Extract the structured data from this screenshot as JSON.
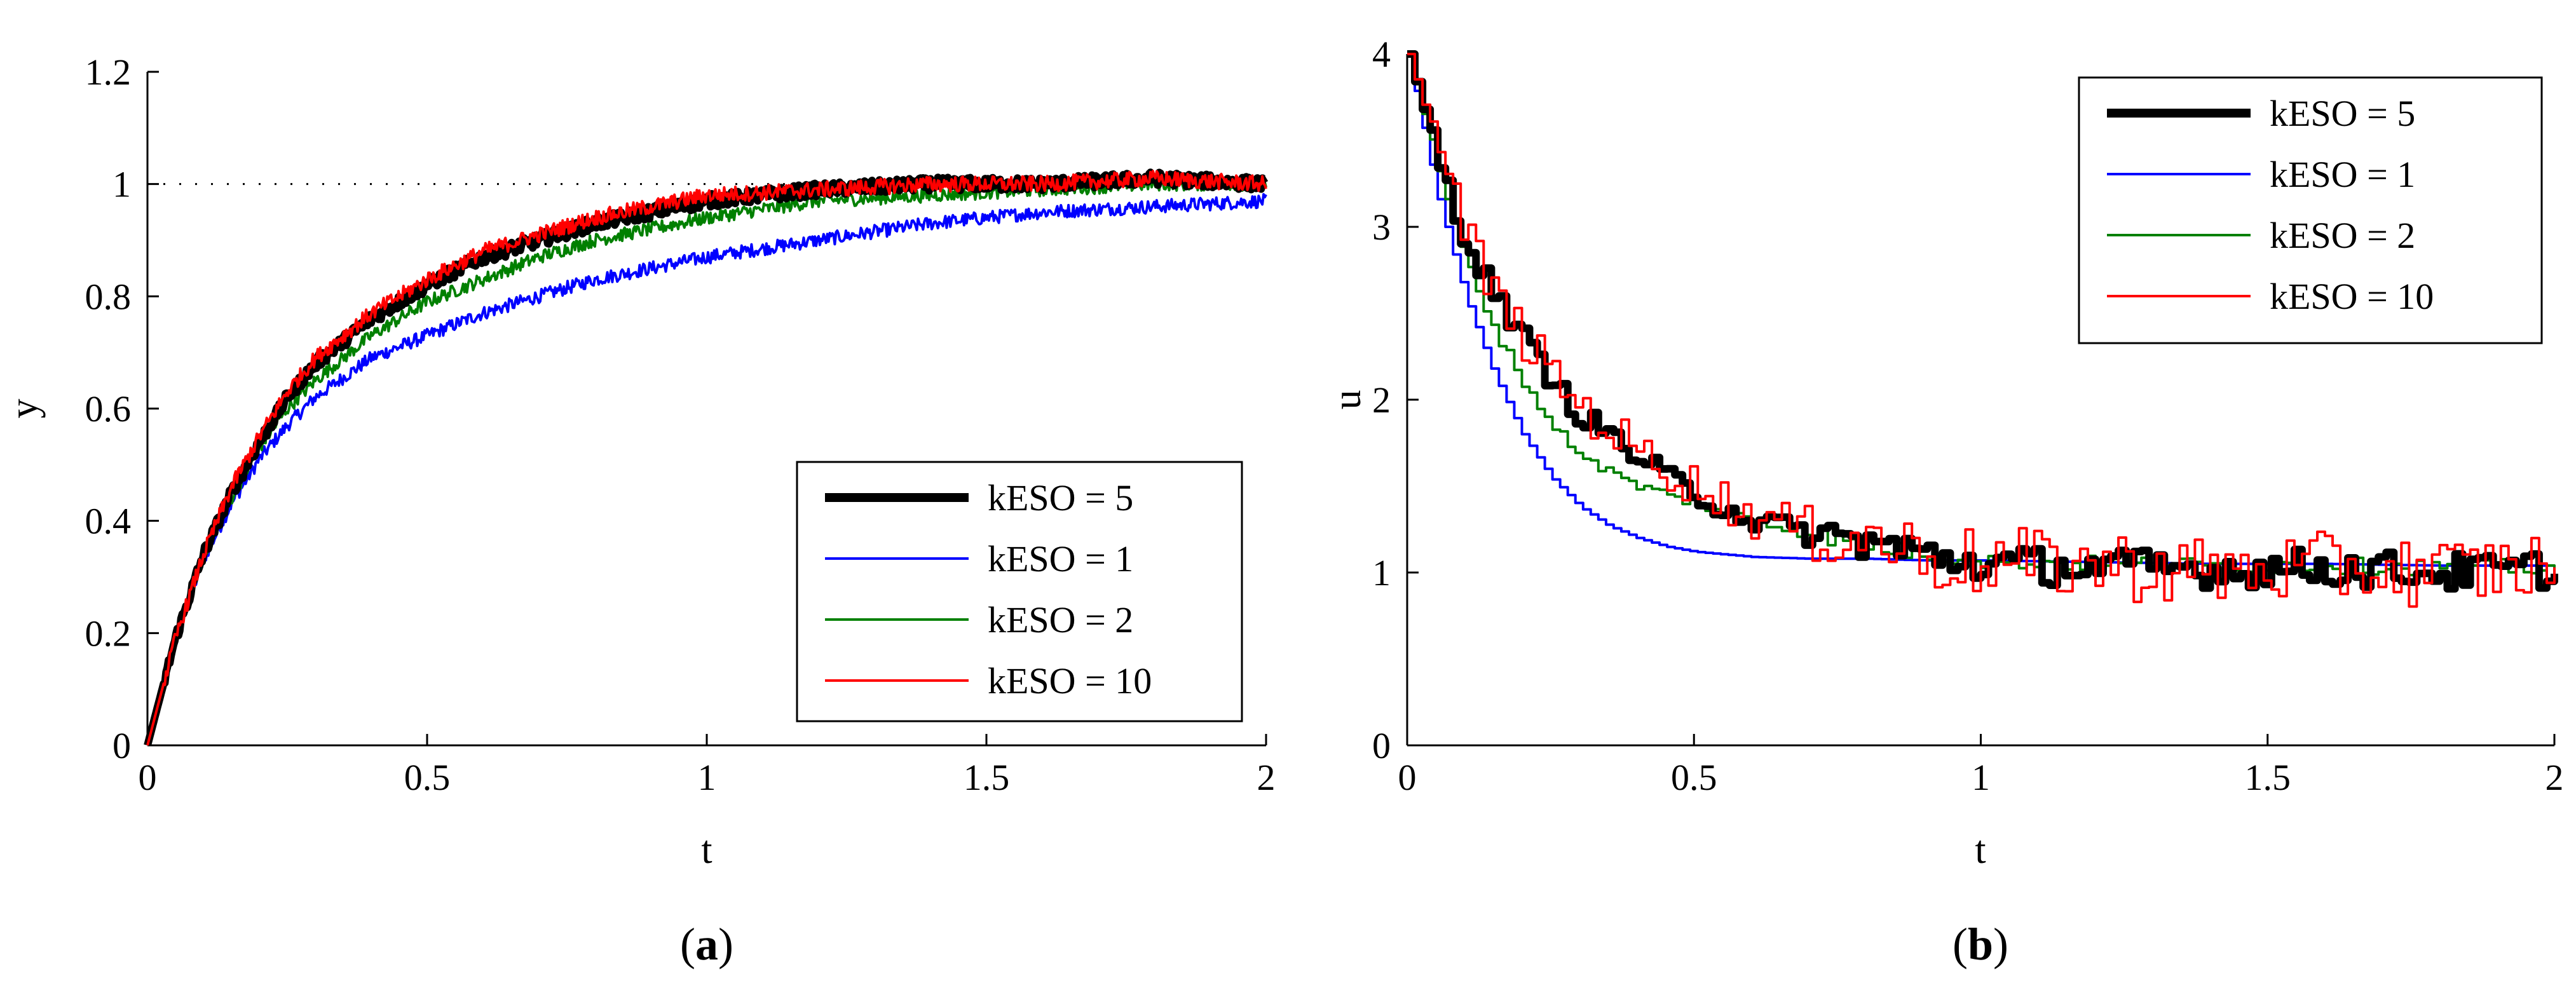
{
  "chart_data": [
    {
      "type": "line",
      "panel_label_open": "(",
      "panel_label_letter": "a",
      "panel_label_close": ")",
      "xlabel": "t",
      "ylabel": "y",
      "xlim": [
        0,
        2
      ],
      "ylim": [
        0,
        1.2
      ],
      "xticks": [
        0,
        0.5,
        1,
        1.5,
        2
      ],
      "xtick_labels": [
        "0",
        "0.5",
        "1",
        "1.5",
        "2"
      ],
      "yticks": [
        0,
        0.2,
        0.4,
        0.6,
        0.8,
        1,
        1.2
      ],
      "ytick_labels": [
        "0",
        "0.2",
        "0.4",
        "0.6",
        "0.8",
        "1",
        "1.2"
      ],
      "grid": false,
      "legend_position": "bottom-right",
      "reference_line": {
        "y": 1,
        "style": "dotted",
        "x_range": [
          0,
          1.9
        ]
      },
      "series": [
        {
          "name": "kESO = 5",
          "color": "#000000",
          "width": "thick",
          "x": [
            0,
            0.05,
            0.1,
            0.15,
            0.2,
            0.25,
            0.3,
            0.4,
            0.5,
            0.6,
            0.7,
            0.8,
            0.9,
            1.0,
            1.2,
            1.4,
            1.6,
            1.8,
            2.0
          ],
          "values": [
            0,
            0.19,
            0.34,
            0.45,
            0.54,
            0.62,
            0.68,
            0.76,
            0.82,
            0.87,
            0.9,
            0.93,
            0.95,
            0.97,
            0.99,
            1.0,
            1.0,
            1.01,
            1.0
          ]
        },
        {
          "name": "kESO = 1",
          "color": "#0000ff",
          "width": "thin",
          "x": [
            0,
            0.05,
            0.1,
            0.15,
            0.2,
            0.25,
            0.3,
            0.4,
            0.5,
            0.6,
            0.7,
            0.8,
            0.9,
            1.0,
            1.2,
            1.4,
            1.6,
            1.8,
            2.0
          ],
          "values": [
            0,
            0.19,
            0.33,
            0.43,
            0.51,
            0.57,
            0.62,
            0.69,
            0.73,
            0.77,
            0.8,
            0.83,
            0.85,
            0.87,
            0.9,
            0.93,
            0.95,
            0.96,
            0.97
          ]
        },
        {
          "name": "kESO = 2",
          "color": "#008000",
          "width": "thin",
          "x": [
            0,
            0.05,
            0.1,
            0.15,
            0.2,
            0.25,
            0.3,
            0.4,
            0.5,
            0.6,
            0.7,
            0.8,
            0.9,
            1.0,
            1.2,
            1.4,
            1.6,
            1.8,
            2.0
          ],
          "values": [
            0,
            0.19,
            0.34,
            0.44,
            0.53,
            0.6,
            0.65,
            0.73,
            0.79,
            0.83,
            0.87,
            0.9,
            0.92,
            0.94,
            0.97,
            0.98,
            0.99,
            1.0,
            1.0
          ]
        },
        {
          "name": "kESO = 10",
          "color": "#ff0000",
          "width": "thin",
          "x": [
            0,
            0.05,
            0.1,
            0.15,
            0.2,
            0.25,
            0.3,
            0.4,
            0.5,
            0.6,
            0.7,
            0.8,
            0.9,
            1.0,
            1.2,
            1.4,
            1.6,
            1.8,
            2.0
          ],
          "values": [
            0,
            0.19,
            0.34,
            0.46,
            0.55,
            0.63,
            0.69,
            0.77,
            0.83,
            0.88,
            0.91,
            0.94,
            0.96,
            0.98,
            0.99,
            1.0,
            1.0,
            1.01,
            1.0
          ]
        }
      ]
    },
    {
      "type": "line",
      "panel_label_open": "(",
      "panel_label_letter": "b",
      "panel_label_close": ")",
      "xlabel": "t",
      "ylabel": "u",
      "xlim": [
        0,
        2
      ],
      "ylim": [
        0,
        4
      ],
      "xticks": [
        0,
        0.5,
        1,
        1.5,
        2
      ],
      "xtick_labels": [
        "0",
        "0.5",
        "1",
        "1.5",
        "2"
      ],
      "yticks": [
        0,
        1,
        2,
        3,
        4
      ],
      "ytick_labels": [
        "0",
        "1",
        "2",
        "3",
        "4"
      ],
      "grid": false,
      "legend_position": "top-right",
      "series": [
        {
          "name": "kESO = 5",
          "color": "#000000",
          "width": "thick",
          "x": [
            0,
            0.05,
            0.1,
            0.15,
            0.2,
            0.25,
            0.3,
            0.35,
            0.4,
            0.45,
            0.5,
            0.6,
            0.7,
            0.8,
            0.9,
            1.0,
            1.2,
            1.4,
            1.6,
            1.8,
            2.0
          ],
          "values": [
            4.0,
            3.4,
            2.9,
            2.6,
            2.35,
            2.1,
            1.9,
            1.8,
            1.65,
            1.55,
            1.45,
            1.3,
            1.22,
            1.18,
            1.1,
            1.05,
            1.03,
            1.02,
            1.03,
            1.0,
            1.02
          ]
        },
        {
          "name": "kESO = 1",
          "color": "#0000ff",
          "width": "thin",
          "x": [
            0,
            0.05,
            0.1,
            0.15,
            0.2,
            0.25,
            0.3,
            0.35,
            0.4,
            0.45,
            0.5,
            0.6,
            0.7,
            0.8,
            0.9,
            1.0,
            1.2,
            1.4,
            1.6,
            1.8,
            2.0
          ],
          "values": [
            4.0,
            3.2,
            2.6,
            2.15,
            1.8,
            1.55,
            1.38,
            1.27,
            1.2,
            1.15,
            1.12,
            1.09,
            1.08,
            1.08,
            1.07,
            1.07,
            1.06,
            1.05,
            1.05,
            1.04,
            1.04
          ]
        },
        {
          "name": "kESO = 2",
          "color": "#008000",
          "width": "thin",
          "x": [
            0,
            0.05,
            0.1,
            0.15,
            0.2,
            0.25,
            0.3,
            0.35,
            0.4,
            0.45,
            0.5,
            0.6,
            0.7,
            0.8,
            0.9,
            1.0,
            1.2,
            1.4,
            1.6,
            1.8,
            2.0
          ],
          "values": [
            4.0,
            3.35,
            2.8,
            2.4,
            2.1,
            1.85,
            1.68,
            1.58,
            1.5,
            1.45,
            1.4,
            1.3,
            1.22,
            1.16,
            1.1,
            1.07,
            1.05,
            1.04,
            1.04,
            1.03,
            1.03
          ]
        },
        {
          "name": "kESO = 10",
          "color": "#ff0000",
          "width": "thin",
          "x": [
            0,
            0.05,
            0.1,
            0.15,
            0.2,
            0.25,
            0.3,
            0.35,
            0.4,
            0.45,
            0.5,
            0.6,
            0.7,
            0.8,
            0.9,
            1.0,
            1.2,
            1.4,
            1.6,
            1.8,
            2.0
          ],
          "values": [
            4.0,
            3.45,
            2.95,
            2.6,
            2.35,
            2.15,
            1.95,
            1.82,
            1.7,
            1.6,
            1.5,
            1.32,
            1.25,
            1.2,
            1.1,
            1.05,
            1.05,
            1.0,
            1.03,
            1.0,
            1.05
          ]
        }
      ]
    }
  ]
}
